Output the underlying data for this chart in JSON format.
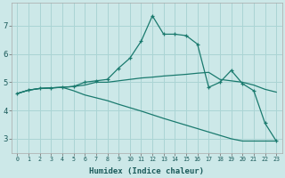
{
  "xlabel": "Humidex (Indice chaleur)",
  "bg_color": "#cce8e8",
  "grid_color": "#aad4d4",
  "line_color": "#1a7a6e",
  "xlim": [
    -0.5,
    23.5
  ],
  "ylim": [
    2.5,
    7.8
  ],
  "yticks": [
    3,
    4,
    5,
    6,
    7
  ],
  "xticks": [
    0,
    1,
    2,
    3,
    4,
    5,
    6,
    7,
    8,
    9,
    10,
    11,
    12,
    13,
    14,
    15,
    16,
    17,
    18,
    19,
    20,
    21,
    22,
    23
  ],
  "line1_x": [
    0,
    1,
    2,
    3,
    4,
    5,
    6,
    7,
    8,
    9,
    10,
    11,
    12,
    13,
    14,
    15,
    16,
    17,
    18,
    19,
    20,
    21,
    22,
    23
  ],
  "line1_y": [
    4.6,
    4.72,
    4.78,
    4.8,
    4.82,
    4.85,
    4.9,
    5.0,
    5.0,
    5.05,
    5.1,
    5.15,
    5.18,
    5.22,
    5.25,
    5.28,
    5.32,
    5.35,
    5.1,
    5.05,
    5.0,
    4.9,
    4.75,
    4.65
  ],
  "line2_x": [
    0,
    1,
    2,
    3,
    4,
    5,
    6,
    7,
    8,
    9,
    10,
    11,
    12,
    13,
    14,
    15,
    16,
    17,
    18,
    19,
    20,
    21,
    22,
    23
  ],
  "line2_y": [
    4.6,
    4.72,
    4.78,
    4.8,
    4.82,
    4.85,
    5.0,
    5.05,
    5.1,
    5.5,
    5.85,
    6.45,
    7.35,
    6.7,
    6.7,
    6.65,
    6.35,
    4.82,
    5.0,
    5.42,
    4.95,
    4.7,
    3.55,
    2.92
  ],
  "line3_x": [
    0,
    1,
    2,
    3,
    4,
    5,
    6,
    7,
    8,
    9,
    10,
    11,
    12,
    13,
    14,
    15,
    16,
    17,
    18,
    19,
    20,
    21,
    22,
    23
  ],
  "line3_y": [
    4.6,
    4.72,
    4.78,
    4.8,
    4.82,
    4.7,
    4.55,
    4.45,
    4.35,
    4.22,
    4.1,
    3.98,
    3.85,
    3.72,
    3.6,
    3.48,
    3.36,
    3.24,
    3.12,
    3.0,
    2.92,
    2.92,
    2.92,
    2.92
  ]
}
